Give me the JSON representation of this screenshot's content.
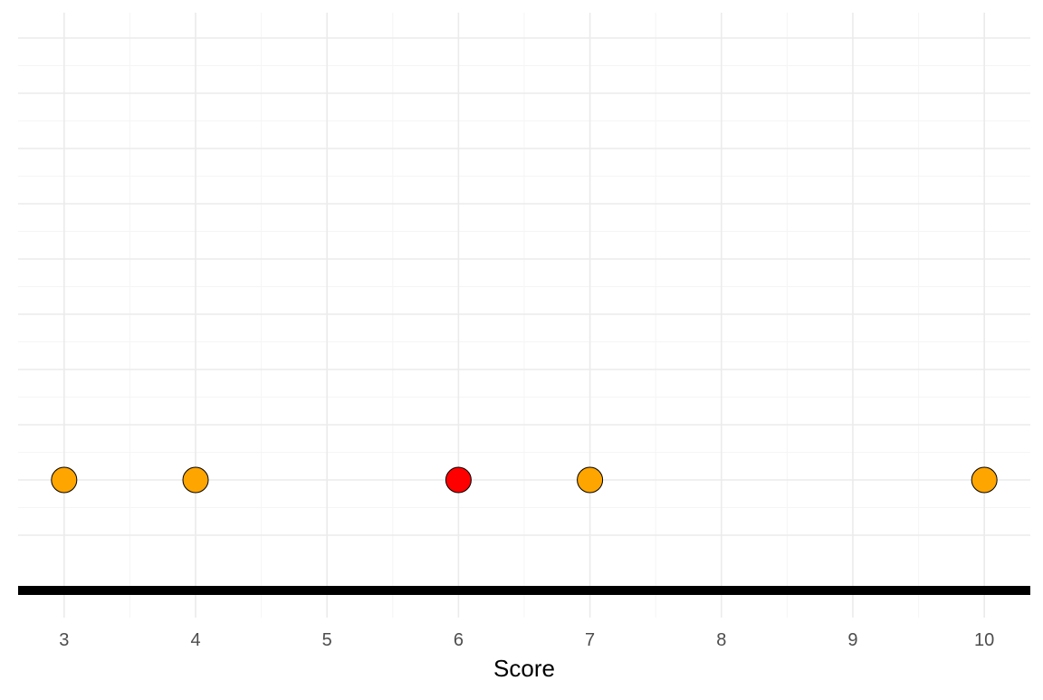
{
  "chart_data": {
    "type": "scatter",
    "title": "",
    "xlabel": "Score",
    "ylabel": "",
    "xlim": [
      2.65,
      10.35
    ],
    "x_ticks": [
      3,
      4,
      5,
      6,
      7,
      8,
      9,
      10
    ],
    "x_tick_labels": [
      "3",
      "4",
      "5",
      "6",
      "7",
      "8",
      "9",
      "10"
    ],
    "grid": true,
    "legend": "none",
    "points": [
      {
        "x": 3,
        "color": "#FFA500"
      },
      {
        "x": 4,
        "color": "#FFA500"
      },
      {
        "x": 6,
        "color": "#FF0000"
      },
      {
        "x": 7,
        "color": "#FFA500"
      },
      {
        "x": 10,
        "color": "#FFA500"
      }
    ],
    "colors": {
      "point_default": "#FFA500",
      "point_highlight": "#FF0000",
      "point_outline": "#000000",
      "baseline": "#000000",
      "grid_major": "#EBEBEB",
      "grid_minor": "#F5F5F5"
    }
  }
}
